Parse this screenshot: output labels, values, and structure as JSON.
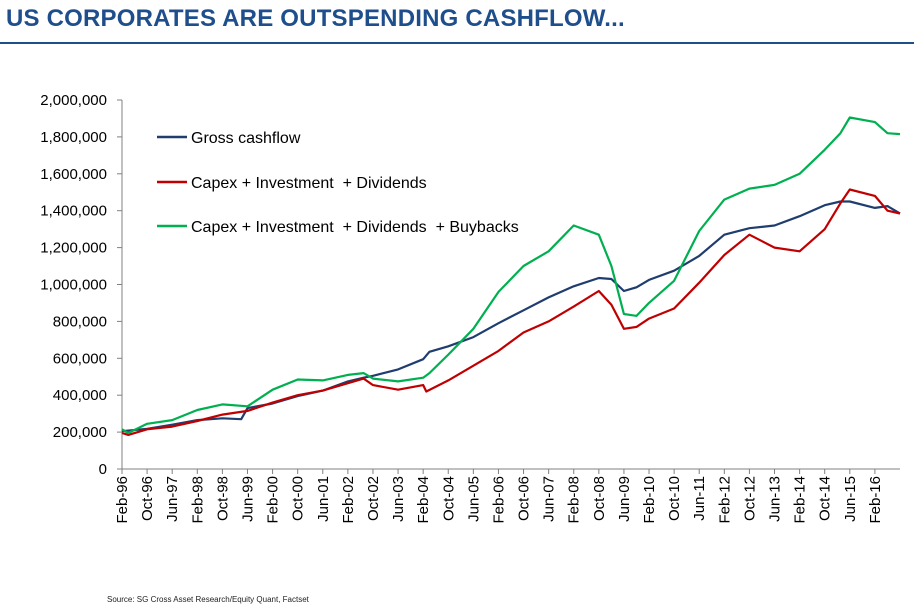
{
  "title": "US CORPORATES ARE OUTSPENDING CASHFLOW...",
  "source": "Source: SG Cross Asset Research/Equity Quant, Factset",
  "colors": {
    "title": "#1f4e8c",
    "gross_cashflow": "#1f3d6e",
    "capex_inv_div": "#c00000",
    "capex_inv_div_buybacks": "#00b050"
  },
  "chart_data": {
    "type": "line",
    "title": "US CORPORATES ARE OUTSPENDING CASHFLOW...",
    "xlabel": "",
    "ylabel": "",
    "ylim": [
      0,
      2000000
    ],
    "yticks": [
      0,
      200000,
      400000,
      600000,
      800000,
      1000000,
      1200000,
      1400000,
      1600000,
      1800000,
      2000000
    ],
    "ytick_labels": [
      "0",
      "200,000",
      "400,000",
      "600,000",
      "800,000",
      "1,000,000",
      "1,200,000",
      "1,400,000",
      "1,600,000",
      "1,800,000",
      "2,000,000"
    ],
    "xlim": [
      "Feb-96",
      "Oct-16"
    ],
    "xtick_labels": [
      "Feb-96",
      "Oct-96",
      "Jun-97",
      "Feb-98",
      "Oct-98",
      "Jun-99",
      "Feb-00",
      "Oct-00",
      "Jun-01",
      "Feb-02",
      "Oct-02",
      "Jun-03",
      "Feb-04",
      "Oct-04",
      "Jun-05",
      "Feb-06",
      "Oct-06",
      "Jun-07",
      "Feb-08",
      "Oct-08",
      "Jun-09",
      "Feb-10",
      "Oct-10",
      "Jun-11",
      "Feb-12",
      "Oct-12",
      "Jun-13",
      "Feb-14",
      "Oct-14",
      "Jun-15",
      "Feb-16"
    ],
    "grid": false,
    "legend_position": "top-left",
    "series": [
      {
        "name": "Gross cashflow",
        "color_key": "gross_cashflow",
        "points": [
          [
            "Feb-96",
            205000
          ],
          [
            "Oct-96",
            218000
          ],
          [
            "Jun-97",
            240000
          ],
          [
            "Feb-98",
            265000
          ],
          [
            "Oct-98",
            275000
          ],
          [
            "Apr-99",
            270000
          ],
          [
            "Jun-99",
            330000
          ],
          [
            "Feb-00",
            355000
          ],
          [
            "Oct-00",
            395000
          ],
          [
            "Jun-01",
            425000
          ],
          [
            "Feb-02",
            475000
          ],
          [
            "Jul-02",
            495000
          ],
          [
            "Oct-02",
            505000
          ],
          [
            "Jun-03",
            540000
          ],
          [
            "Feb-04",
            595000
          ],
          [
            "Apr-04",
            635000
          ],
          [
            "Oct-04",
            665000
          ],
          [
            "Jun-05",
            715000
          ],
          [
            "Feb-06",
            790000
          ],
          [
            "Oct-06",
            860000
          ],
          [
            "Jun-07",
            930000
          ],
          [
            "Feb-08",
            990000
          ],
          [
            "Oct-08",
            1035000
          ],
          [
            "Feb-09",
            1030000
          ],
          [
            "Jun-09",
            965000
          ],
          [
            "Oct-09",
            985000
          ],
          [
            "Feb-10",
            1025000
          ],
          [
            "Oct-10",
            1075000
          ],
          [
            "Jun-11",
            1155000
          ],
          [
            "Feb-12",
            1270000
          ],
          [
            "Oct-12",
            1305000
          ],
          [
            "Jun-13",
            1320000
          ],
          [
            "Feb-14",
            1370000
          ],
          [
            "Oct-14",
            1430000
          ],
          [
            "Mar-15",
            1450000
          ],
          [
            "Jun-15",
            1450000
          ],
          [
            "Feb-16",
            1415000
          ],
          [
            "Jun-16",
            1425000
          ],
          [
            "Oct-16",
            1385000
          ]
        ]
      },
      {
        "name": "Capex + Investment  + Dividends",
        "color_key": "capex_inv_div",
        "points": [
          [
            "Feb-96",
            195000
          ],
          [
            "Apr-96",
            185000
          ],
          [
            "Oct-96",
            215000
          ],
          [
            "Jun-97",
            230000
          ],
          [
            "Feb-98",
            260000
          ],
          [
            "Oct-98",
            295000
          ],
          [
            "Jun-99",
            315000
          ],
          [
            "Feb-00",
            360000
          ],
          [
            "Oct-00",
            400000
          ],
          [
            "Jun-01",
            425000
          ],
          [
            "Feb-02",
            465000
          ],
          [
            "Jul-02",
            490000
          ],
          [
            "Oct-02",
            455000
          ],
          [
            "Jun-03",
            430000
          ],
          [
            "Feb-04",
            455000
          ],
          [
            "Mar-04",
            420000
          ],
          [
            "Oct-04",
            480000
          ],
          [
            "Jun-05",
            560000
          ],
          [
            "Feb-06",
            640000
          ],
          [
            "Oct-06",
            740000
          ],
          [
            "Jun-07",
            800000
          ],
          [
            "Feb-08",
            880000
          ],
          [
            "Oct-08",
            965000
          ],
          [
            "Feb-09",
            890000
          ],
          [
            "Jun-09",
            760000
          ],
          [
            "Oct-09",
            770000
          ],
          [
            "Feb-10",
            815000
          ],
          [
            "Oct-10",
            870000
          ],
          [
            "Jun-11",
            1010000
          ],
          [
            "Feb-12",
            1160000
          ],
          [
            "Oct-12",
            1270000
          ],
          [
            "Jun-13",
            1200000
          ],
          [
            "Feb-14",
            1180000
          ],
          [
            "Oct-14",
            1300000
          ],
          [
            "Mar-15",
            1440000
          ],
          [
            "Jun-15",
            1515000
          ],
          [
            "Feb-16",
            1480000
          ],
          [
            "Jun-16",
            1400000
          ],
          [
            "Oct-16",
            1385000
          ]
        ]
      },
      {
        "name": "Capex + Investment  + Dividends  + Buybacks",
        "color_key": "capex_inv_div_buybacks",
        "points": [
          [
            "Feb-96",
            215000
          ],
          [
            "Apr-96",
            195000
          ],
          [
            "Oct-96",
            245000
          ],
          [
            "Jun-97",
            265000
          ],
          [
            "Feb-98",
            320000
          ],
          [
            "Oct-98",
            350000
          ],
          [
            "Jun-99",
            340000
          ],
          [
            "Feb-00",
            430000
          ],
          [
            "Oct-00",
            485000
          ],
          [
            "Jun-01",
            480000
          ],
          [
            "Feb-02",
            510000
          ],
          [
            "Jul-02",
            520000
          ],
          [
            "Oct-02",
            490000
          ],
          [
            "Jun-03",
            475000
          ],
          [
            "Feb-04",
            495000
          ],
          [
            "Apr-04",
            520000
          ],
          [
            "Oct-04",
            620000
          ],
          [
            "Jun-05",
            760000
          ],
          [
            "Feb-06",
            960000
          ],
          [
            "Oct-06",
            1100000
          ],
          [
            "Jun-07",
            1180000
          ],
          [
            "Feb-08",
            1320000
          ],
          [
            "Oct-08",
            1270000
          ],
          [
            "Feb-09",
            1100000
          ],
          [
            "Jun-09",
            840000
          ],
          [
            "Oct-09",
            830000
          ],
          [
            "Feb-10",
            900000
          ],
          [
            "Oct-10",
            1020000
          ],
          [
            "Jun-11",
            1290000
          ],
          [
            "Feb-12",
            1460000
          ],
          [
            "Oct-12",
            1520000
          ],
          [
            "Jun-13",
            1540000
          ],
          [
            "Feb-14",
            1600000
          ],
          [
            "Oct-14",
            1730000
          ],
          [
            "Mar-15",
            1820000
          ],
          [
            "Jun-15",
            1905000
          ],
          [
            "Feb-16",
            1880000
          ],
          [
            "Jun-16",
            1820000
          ],
          [
            "Oct-16",
            1815000
          ]
        ]
      }
    ]
  }
}
